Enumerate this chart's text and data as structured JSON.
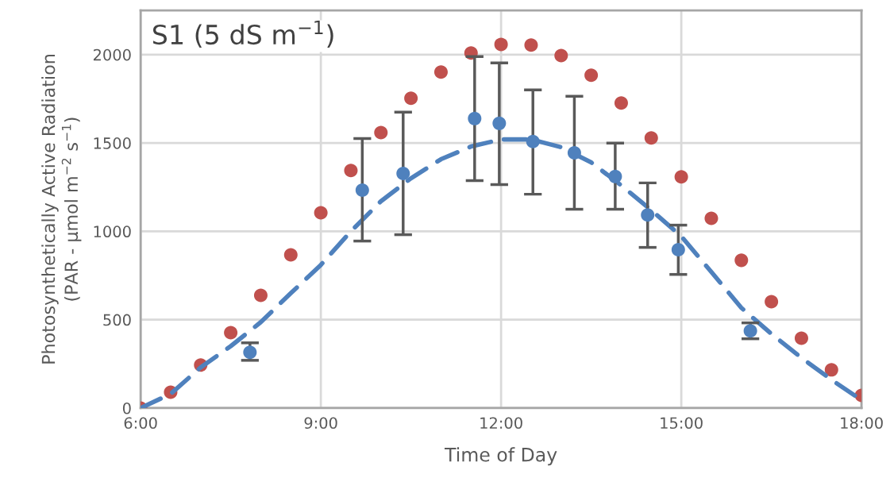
{
  "chart_data": {
    "type": "scatter",
    "xlabel": "Time of Day",
    "ylabel": "Photosynthetically Active Radiation\n(PAR - µmol m$^{−2}$ s$^{−1}$)",
    "annotations": [
      "S1 (5 dS m$^{−1}$)"
    ],
    "xlim": [
      6,
      18
    ],
    "xticks": [
      {
        "value": 6,
        "label": "6:00"
      },
      {
        "value": 9,
        "label": "9:00"
      },
      {
        "value": 12,
        "label": "12:00"
      },
      {
        "value": 15,
        "label": "15:00"
      },
      {
        "value": 18,
        "label": "18:00"
      }
    ],
    "ylim": [
      0,
      2250
    ],
    "yticks": [
      0,
      500,
      1000,
      1500,
      2000
    ],
    "grid": true,
    "series": [
      {
        "color": "#c0504d",
        "marker": "circle",
        "x": [
          6,
          6.5,
          7,
          7.5,
          8,
          8.5,
          9,
          9.5,
          10,
          10.5,
          11,
          11.5,
          12,
          12.5,
          13,
          13.5,
          14,
          14.5,
          15,
          15.5,
          16,
          16.5,
          17,
          17.5,
          18
        ],
        "values": [
          0,
          90,
          243,
          427,
          638,
          867,
          1105,
          1344,
          1559,
          1753,
          1901,
          2009,
          2058,
          2054,
          1995,
          1883,
          1726,
          1528,
          1308,
          1074,
          836,
          602,
          395,
          216,
          72
        ]
      },
      {
        "type": "line",
        "color": "#4f81bd",
        "marker": "none",
        "line_style": "dashed",
        "x": [
          6,
          6.5,
          7,
          7.5,
          8,
          8.5,
          9,
          9.5,
          10,
          10.5,
          11,
          11.5,
          12,
          12.5,
          13,
          13.5,
          14,
          14.5,
          15,
          15.5,
          16,
          16.5,
          17,
          17.5,
          18
        ],
        "values": [
          0,
          80,
          230,
          350,
          486,
          650,
          810,
          1000,
          1170,
          1300,
          1408,
          1480,
          1520,
          1520,
          1476,
          1390,
          1260,
          1120,
          972,
          770,
          567,
          420,
          284,
          160,
          45
        ]
      },
      {
        "color": "#4f81bd",
        "marker": "circle",
        "x": [
          7.82,
          9.69,
          10.37,
          11.56,
          11.97,
          12.53,
          13.22,
          13.9,
          14.44,
          14.95,
          16.15
        ],
        "values": [
          315,
          1233,
          1327,
          1638,
          1611,
          1508,
          1444,
          1310,
          1093,
          896,
          437
        ],
        "errors": [
          [
            270,
            369
          ],
          [
            945,
            1525
          ],
          [
            981,
            1674
          ],
          [
            1287,
            1989
          ],
          [
            1264,
            1953
          ],
          [
            1210,
            1800
          ],
          [
            1125,
            1764
          ],
          [
            1125,
            1499
          ],
          [
            909,
            1274
          ],
          [
            756,
            1035
          ],
          [
            392,
            482
          ]
        ]
      }
    ]
  }
}
